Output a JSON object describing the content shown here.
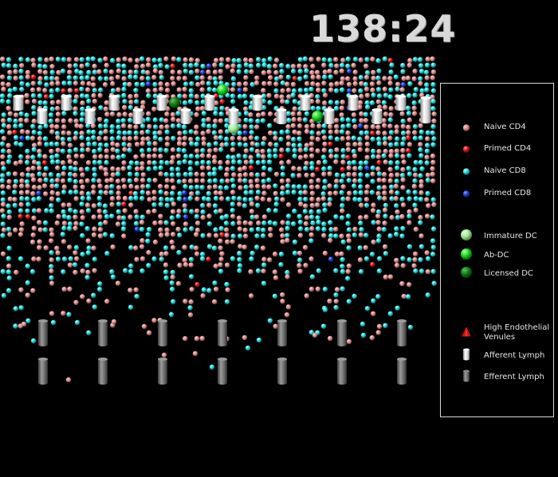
{
  "timer": "138:24",
  "legend": {
    "items": [
      {
        "label": "Naive CD4",
        "icon": "naive-cd4-icon",
        "kind": "ball",
        "color": "#d98b8b"
      },
      {
        "label": "Primed CD4",
        "icon": "primed-cd4-icon",
        "kind": "ball",
        "color": "#e01010"
      },
      {
        "label": "Naive CD8",
        "icon": "naive-cd8-icon",
        "kind": "ball",
        "color": "#19d5d5"
      },
      {
        "label": "Primed CD8",
        "icon": "primed-cd8-icon",
        "kind": "ball",
        "color": "#1a3bd6"
      },
      {
        "label": "Immature DC",
        "icon": "immature-dc-icon",
        "kind": "bigball",
        "color": "#9be592"
      },
      {
        "label": "Ab-DC",
        "icon": "ab-dc-icon",
        "kind": "bigball",
        "color": "#15d415"
      },
      {
        "label": "Licensed DC",
        "icon": "licensed-dc-icon",
        "kind": "bigball",
        "color": "#0f7a0f"
      },
      {
        "label": "High Endothelial Venules",
        "icon": "hev-icon",
        "kind": "triangle",
        "color": "#cc1010"
      },
      {
        "label": "Afferent Lymph",
        "icon": "afferent-lymph-icon",
        "kind": "cyl-light",
        "color": "#e4e4e4"
      },
      {
        "label": "Efferent Lymph",
        "icon": "efferent-lymph-icon",
        "kind": "cyl-dark",
        "color": "#777777"
      }
    ]
  },
  "colors": {
    "background": "#000000",
    "naive_cd4": "#d98b8b",
    "primed_cd4": "#e01010",
    "naive_cd8": "#19d5d5",
    "primed_cd8": "#1a3bd6",
    "immature_dc": "#9be592",
    "ab_dc": "#15d415",
    "licensed_dc": "#0f7a0f",
    "afferent_lymph": "#e4e4e4",
    "efferent_lymph": "#777777"
  }
}
